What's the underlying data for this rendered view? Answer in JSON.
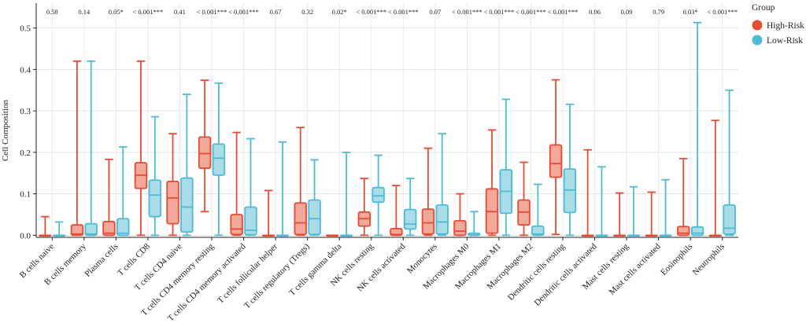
{
  "chart_data": {
    "type": "boxplot",
    "ylabel": "Cell Composition",
    "ylim": [
      -0.005,
      0.56
    ],
    "yticks": [
      0.0,
      0.1,
      0.2,
      0.3,
      0.4,
      0.5
    ],
    "ytick_labels": [
      "0.0",
      "0.1",
      "0.2",
      "0.3",
      "0.4",
      "0.5"
    ],
    "grid": true,
    "legend": {
      "title": "Group",
      "position": "top-right",
      "entries": [
        {
          "name": "High-Risk",
          "color": "#E64B35",
          "fill": "#F4A89A"
        },
        {
          "name": "Low-Risk",
          "color": "#4DBBD5",
          "fill": "#A9DCE6"
        }
      ]
    },
    "series_names": [
      "High-Risk",
      "Low-Risk"
    ],
    "categories": [
      {
        "label": "B cells naive",
        "pval": "0.58",
        "high": {
          "min": 0,
          "q1": 0,
          "median": 0,
          "q3": 0,
          "max": 0.045
        },
        "low": {
          "min": 0,
          "q1": 0,
          "median": 0,
          "q3": 0,
          "max": 0.032
        }
      },
      {
        "label": "B cells memory",
        "pval": "0.14",
        "high": {
          "min": 0,
          "q1": 0,
          "median": 0.003,
          "q3": 0.025,
          "max": 0.42
        },
        "low": {
          "min": 0,
          "q1": 0,
          "median": 0.003,
          "q3": 0.028,
          "max": 0.42
        }
      },
      {
        "label": "Plasma cells",
        "pval": "0.05*",
        "high": {
          "min": 0,
          "q1": 0,
          "median": 0.005,
          "q3": 0.033,
          "max": 0.183
        },
        "low": {
          "min": 0,
          "q1": 0,
          "median": 0.005,
          "q3": 0.04,
          "max": 0.213
        }
      },
      {
        "label": "T cells CD8",
        "pval": "< 0.001***",
        "high": {
          "min": 0,
          "q1": 0.113,
          "median": 0.145,
          "q3": 0.175,
          "max": 0.42
        },
        "low": {
          "min": 0,
          "q1": 0.045,
          "median": 0.097,
          "q3": 0.133,
          "max": 0.286
        }
      },
      {
        "label": "T cells CD4 naive",
        "pval": "0.41",
        "high": {
          "min": 0,
          "q1": 0.028,
          "median": 0.09,
          "q3": 0.13,
          "max": 0.245
        },
        "low": {
          "min": 0,
          "q1": 0.008,
          "median": 0.068,
          "q3": 0.138,
          "max": 0.34
        }
      },
      {
        "label": "T cells CD4 memory resting",
        "pval": "< 0.001***",
        "high": {
          "min": 0.057,
          "q1": 0.162,
          "median": 0.197,
          "q3": 0.237,
          "max": 0.374
        },
        "low": {
          "min": 0,
          "q1": 0.145,
          "median": 0.186,
          "q3": 0.22,
          "max": 0.367
        }
      },
      {
        "label": "T cells CD4 memory activated",
        "pval": "< 0.001***",
        "high": {
          "min": 0,
          "q1": 0.002,
          "median": 0.015,
          "q3": 0.05,
          "max": 0.248
        },
        "low": {
          "min": 0,
          "q1": 0.001,
          "median": 0.012,
          "q3": 0.068,
          "max": 0.233
        }
      },
      {
        "label": "T cells follicular helper",
        "pval": "0.67",
        "high": {
          "min": 0,
          "q1": 0,
          "median": 0,
          "q3": 0,
          "max": 0.108
        },
        "low": {
          "min": 0,
          "q1": 0,
          "median": 0,
          "q3": 0,
          "max": 0.225
        }
      },
      {
        "label": "T cells regulatory (Tregs)",
        "pval": "0.32",
        "high": {
          "min": 0,
          "q1": 0.002,
          "median": 0.03,
          "q3": 0.078,
          "max": 0.26
        },
        "low": {
          "min": 0,
          "q1": 0.002,
          "median": 0.04,
          "q3": 0.085,
          "max": 0.182
        }
      },
      {
        "label": "T cells gamma delta",
        "pval": "0.02*",
        "high": {
          "min": 0,
          "q1": 0,
          "median": 0,
          "q3": 0,
          "max": 0.0
        },
        "low": {
          "min": 0,
          "q1": 0,
          "median": 0,
          "q3": 0,
          "max": 0.2
        }
      },
      {
        "label": "NK cells resting",
        "pval": "< 0.001***",
        "high": {
          "min": 0,
          "q1": 0.022,
          "median": 0.04,
          "q3": 0.056,
          "max": 0.137
        },
        "low": {
          "min": 0,
          "q1": 0.08,
          "median": 0.095,
          "q3": 0.115,
          "max": 0.193
        }
      },
      {
        "label": "NK cells activated",
        "pval": "< 0.001***",
        "high": {
          "min": 0,
          "q1": 0,
          "median": 0.002,
          "q3": 0.016,
          "max": 0.12
        },
        "low": {
          "min": 0,
          "q1": 0.015,
          "median": 0.027,
          "q3": 0.062,
          "max": 0.137
        }
      },
      {
        "label": "Monocytes",
        "pval": "0.07",
        "high": {
          "min": 0,
          "q1": 0.003,
          "median": 0.03,
          "q3": 0.063,
          "max": 0.21
        },
        "low": {
          "min": 0,
          "q1": 0.003,
          "median": 0.032,
          "q3": 0.073,
          "max": 0.245
        }
      },
      {
        "label": "Macrophages M0",
        "pval": "< 0.001***",
        "high": {
          "min": 0,
          "q1": 0,
          "median": 0.01,
          "q3": 0.035,
          "max": 0.1
        },
        "low": {
          "min": 0,
          "q1": 0,
          "median": 0.001,
          "q3": 0.005,
          "max": 0.057
        }
      },
      {
        "label": "Macrophages M1",
        "pval": "< 0.001***",
        "high": {
          "min": 0,
          "q1": 0.005,
          "median": 0.057,
          "q3": 0.112,
          "max": 0.254
        },
        "low": {
          "min": 0,
          "q1": 0.053,
          "median": 0.106,
          "q3": 0.158,
          "max": 0.328
        }
      },
      {
        "label": "Macrophages M2",
        "pval": "< 0.001***",
        "high": {
          "min": 0,
          "q1": 0.025,
          "median": 0.056,
          "q3": 0.085,
          "max": 0.176
        },
        "low": {
          "min": 0,
          "q1": 0,
          "median": 0.003,
          "q3": 0.022,
          "max": 0.123
        }
      },
      {
        "label": "Dendritic cells resting",
        "pval": "< 0.001***",
        "high": {
          "min": 0.002,
          "q1": 0.14,
          "median": 0.173,
          "q3": 0.218,
          "max": 0.375
        },
        "low": {
          "min": 0,
          "q1": 0.055,
          "median": 0.109,
          "q3": 0.16,
          "max": 0.316
        }
      },
      {
        "label": "Dendritic cells activated",
        "pval": "0.06",
        "high": {
          "min": 0,
          "q1": 0,
          "median": 0,
          "q3": 0,
          "max": 0.206
        },
        "low": {
          "min": 0,
          "q1": 0,
          "median": 0,
          "q3": 0,
          "max": 0.165
        }
      },
      {
        "label": "Mast cells resting",
        "pval": "0.09",
        "high": {
          "min": 0,
          "q1": 0,
          "median": 0,
          "q3": 0,
          "max": 0.102
        },
        "low": {
          "min": 0,
          "q1": 0,
          "median": 0,
          "q3": 0,
          "max": 0.117
        }
      },
      {
        "label": "Mast cells activated",
        "pval": "0.79",
        "high": {
          "min": 0,
          "q1": 0,
          "median": 0,
          "q3": 0,
          "max": 0.104
        },
        "low": {
          "min": 0,
          "q1": 0,
          "median": 0,
          "q3": 0,
          "max": 0.134
        }
      },
      {
        "label": "Eosinophils",
        "pval": "0.03*",
        "high": {
          "min": 0,
          "q1": 0,
          "median": 0.005,
          "q3": 0.021,
          "max": 0.185
        },
        "low": {
          "min": 0,
          "q1": 0,
          "median": 0.005,
          "q3": 0.02,
          "max": 0.513
        }
      },
      {
        "label": "Neutrophils",
        "pval": "< 0.001***",
        "high": {
          "min": 0,
          "q1": 0,
          "median": 0,
          "q3": 0,
          "max": 0.277
        },
        "low": {
          "min": 0,
          "q1": 0.003,
          "median": 0.017,
          "q3": 0.073,
          "max": 0.35
        }
      }
    ]
  }
}
